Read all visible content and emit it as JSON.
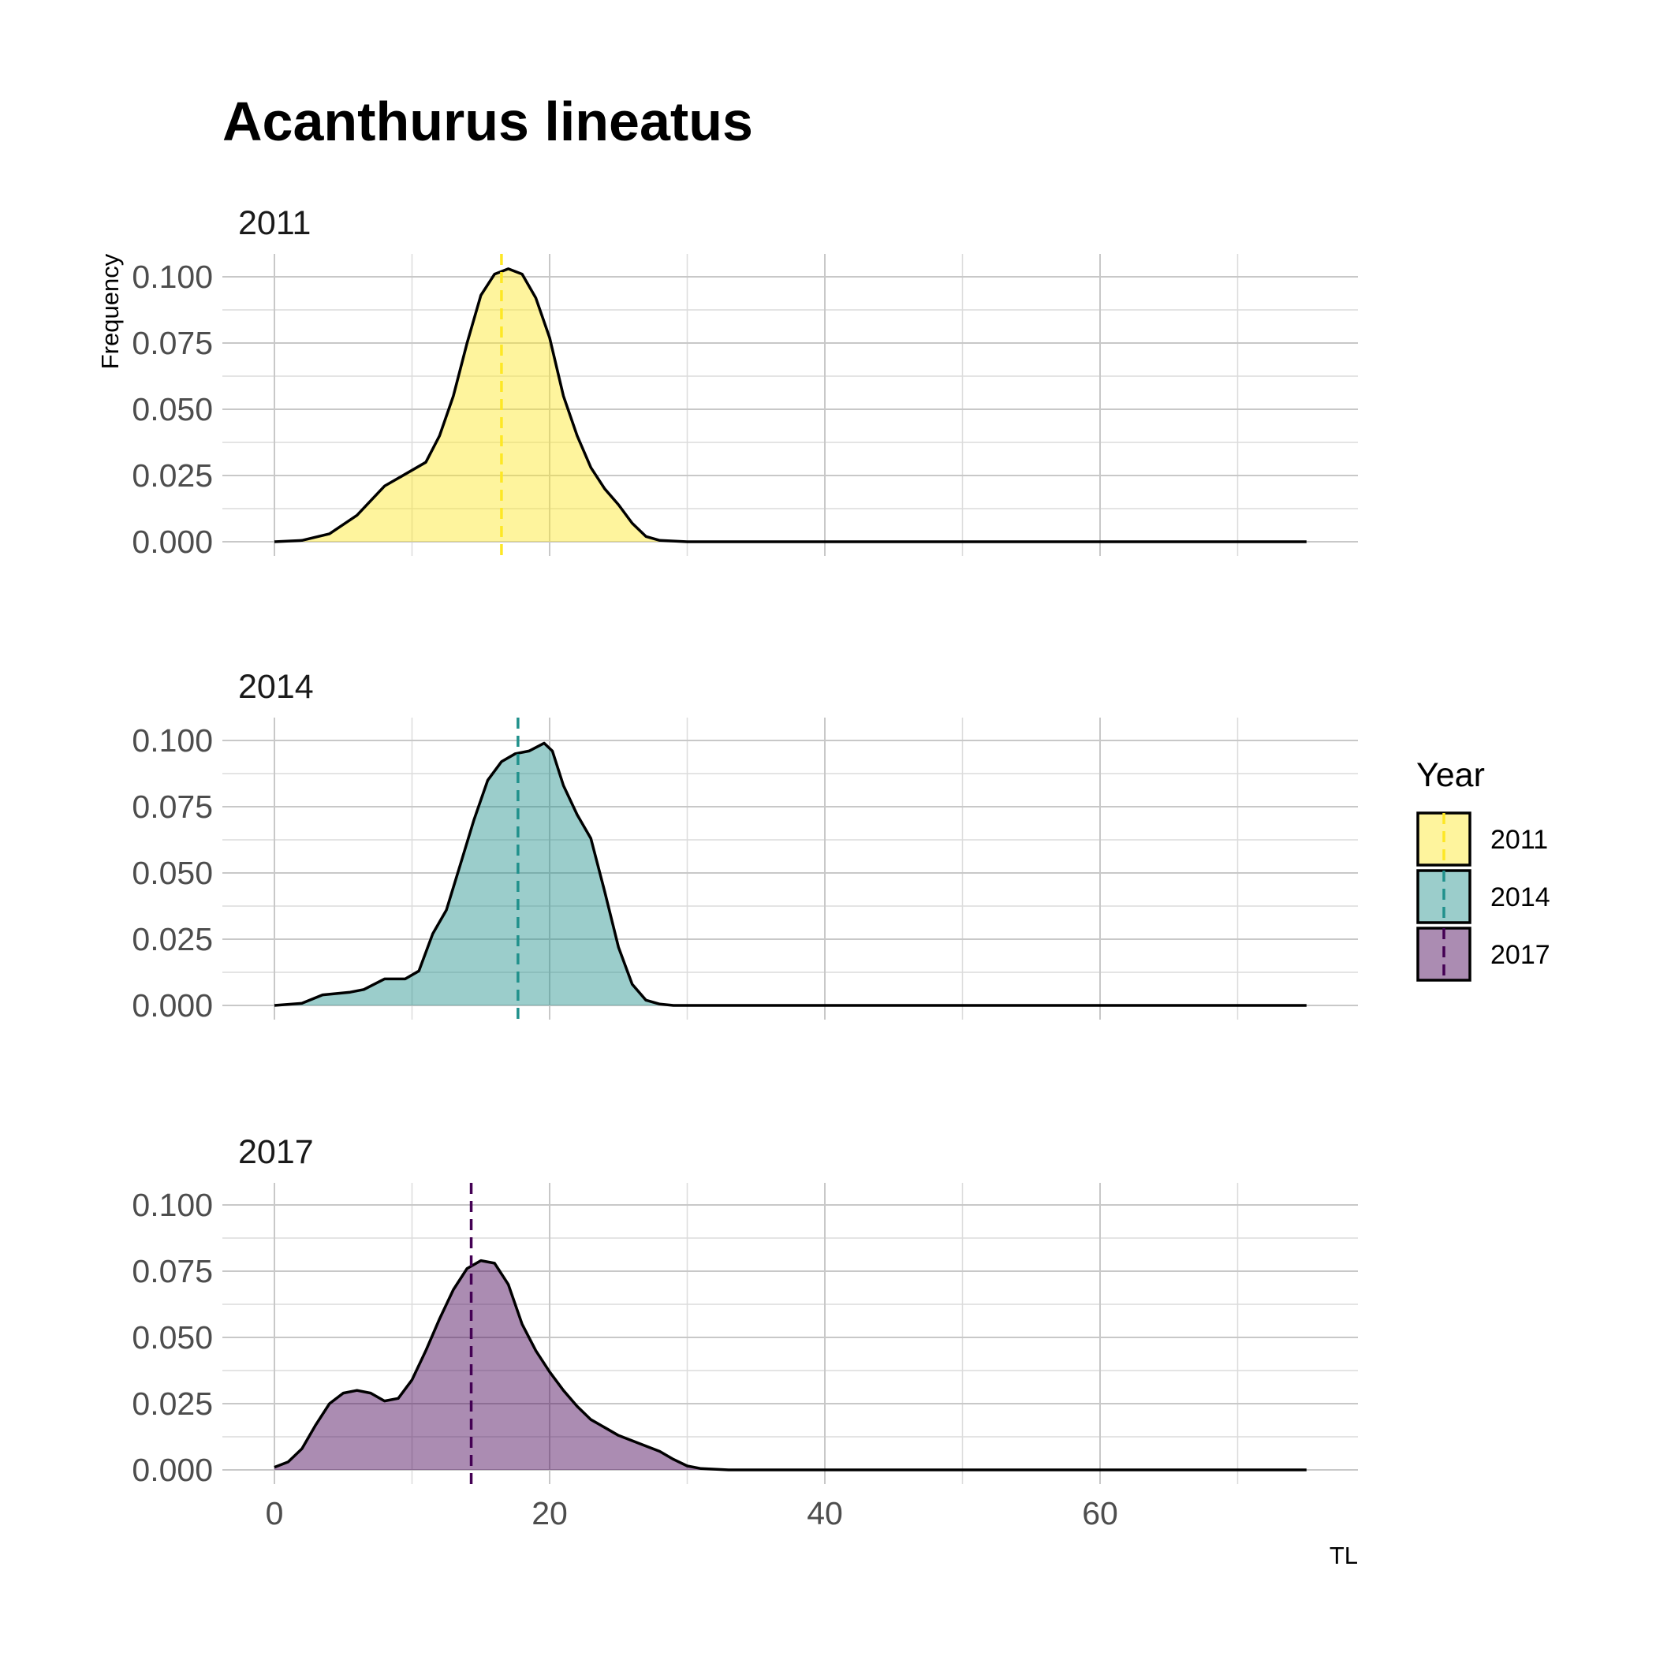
{
  "chart_data": {
    "type": "area",
    "title": "Acanthurus lineatus",
    "ylabel": "Frequency",
    "xlabel": "TL",
    "xlim": [
      -3,
      79
    ],
    "ylim": [
      -0.005,
      0.11
    ],
    "x_ticks": [
      0,
      20,
      40,
      60
    ],
    "y_ticks": [
      0.0,
      0.025,
      0.05,
      0.075,
      0.1
    ],
    "y_tick_labels": [
      "0.000",
      "0.025",
      "0.050",
      "0.075",
      "0.100"
    ],
    "grid": true,
    "legend": {
      "title": "Year",
      "position": "right",
      "entries": [
        "2011",
        "2014",
        "2017"
      ]
    },
    "panels": [
      {
        "strip": "2011",
        "fill": "#fde725",
        "line": "#fde725",
        "mean": 16.5,
        "points": [
          [
            0,
            0
          ],
          [
            2,
            0.0005
          ],
          [
            4,
            0.003
          ],
          [
            6,
            0.01
          ],
          [
            8,
            0.021
          ],
          [
            9,
            0.024
          ],
          [
            11,
            0.03
          ],
          [
            12,
            0.04
          ],
          [
            13,
            0.055
          ],
          [
            14,
            0.075
          ],
          [
            15,
            0.093
          ],
          [
            16,
            0.101
          ],
          [
            17,
            0.103
          ],
          [
            18,
            0.101
          ],
          [
            19,
            0.092
          ],
          [
            20,
            0.077
          ],
          [
            21,
            0.055
          ],
          [
            22,
            0.04
          ],
          [
            23,
            0.028
          ],
          [
            24,
            0.02
          ],
          [
            25,
            0.014
          ],
          [
            26,
            0.007
          ],
          [
            27,
            0.002
          ],
          [
            28,
            0.0005
          ],
          [
            30,
            0
          ],
          [
            75,
            0
          ]
        ]
      },
      {
        "strip": "2014",
        "fill": "#21918c",
        "line": "#21918c",
        "mean": 17.7,
        "points": [
          [
            0,
            0
          ],
          [
            2,
            0.0008
          ],
          [
            3.5,
            0.004
          ],
          [
            5.5,
            0.005
          ],
          [
            6.5,
            0.006
          ],
          [
            8,
            0.01
          ],
          [
            9.5,
            0.01
          ],
          [
            10.5,
            0.013
          ],
          [
            11.5,
            0.027
          ],
          [
            12.5,
            0.036
          ],
          [
            13.5,
            0.053
          ],
          [
            14.5,
            0.07
          ],
          [
            15.5,
            0.085
          ],
          [
            16.5,
            0.092
          ],
          [
            17.5,
            0.095
          ],
          [
            18.5,
            0.096
          ],
          [
            19.6,
            0.099
          ],
          [
            20.2,
            0.096
          ],
          [
            21,
            0.083
          ],
          [
            22,
            0.072
          ],
          [
            23,
            0.063
          ],
          [
            24,
            0.043
          ],
          [
            25,
            0.022
          ],
          [
            26,
            0.008
          ],
          [
            27,
            0.002
          ],
          [
            28,
            0.0005
          ],
          [
            29,
            0
          ],
          [
            75,
            0
          ]
        ]
      },
      {
        "strip": "2017",
        "fill": "#440154",
        "line": "#440154",
        "mean": 14.3,
        "points": [
          [
            0,
            0.001
          ],
          [
            1,
            0.003
          ],
          [
            2,
            0.008
          ],
          [
            3,
            0.017
          ],
          [
            4,
            0.025
          ],
          [
            5,
            0.029
          ],
          [
            6,
            0.03
          ],
          [
            7,
            0.029
          ],
          [
            8,
            0.026
          ],
          [
            9,
            0.027
          ],
          [
            10,
            0.034
          ],
          [
            11,
            0.045
          ],
          [
            12,
            0.057
          ],
          [
            13,
            0.068
          ],
          [
            14,
            0.076
          ],
          [
            15,
            0.079
          ],
          [
            16,
            0.078
          ],
          [
            17,
            0.07
          ],
          [
            18,
            0.055
          ],
          [
            19,
            0.045
          ],
          [
            20,
            0.037
          ],
          [
            21,
            0.03
          ],
          [
            22,
            0.024
          ],
          [
            23,
            0.019
          ],
          [
            24,
            0.016
          ],
          [
            25,
            0.013
          ],
          [
            26,
            0.011
          ],
          [
            27,
            0.009
          ],
          [
            28,
            0.007
          ],
          [
            29,
            0.004
          ],
          [
            30,
            0.0015
          ],
          [
            31,
            0.0005
          ],
          [
            33,
            0
          ],
          [
            75,
            0
          ]
        ]
      }
    ]
  }
}
